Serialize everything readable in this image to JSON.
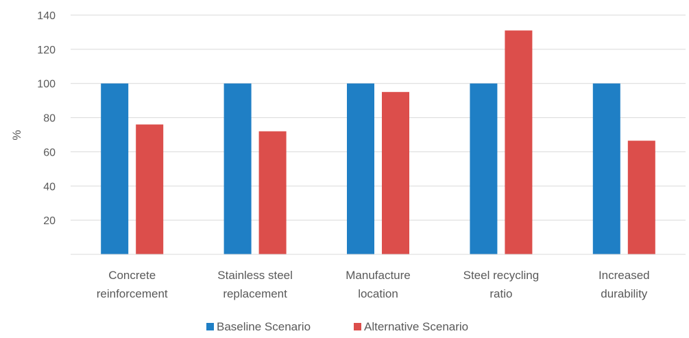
{
  "chart_data": {
    "type": "bar",
    "ylabel": "%",
    "ylim": [
      0,
      140
    ],
    "yticks": [
      20,
      40,
      60,
      80,
      100,
      120,
      140
    ],
    "grid": true,
    "legend_position": "bottom",
    "categories": [
      [
        "Concrete",
        "reinforcement"
      ],
      [
        "Stainless steel",
        "replacement"
      ],
      [
        "Manufacture",
        "location"
      ],
      [
        "Steel recycling",
        "ratio"
      ],
      [
        "Increased",
        "durability"
      ]
    ],
    "series": [
      {
        "name": "Baseline Scenario",
        "color": "#1f7fc5",
        "values": [
          100,
          100,
          100,
          100,
          100
        ]
      },
      {
        "name": "Alternative Scenario",
        "color": "#dc4e4b",
        "values": [
          76,
          72,
          95,
          131,
          66.5
        ]
      }
    ]
  }
}
